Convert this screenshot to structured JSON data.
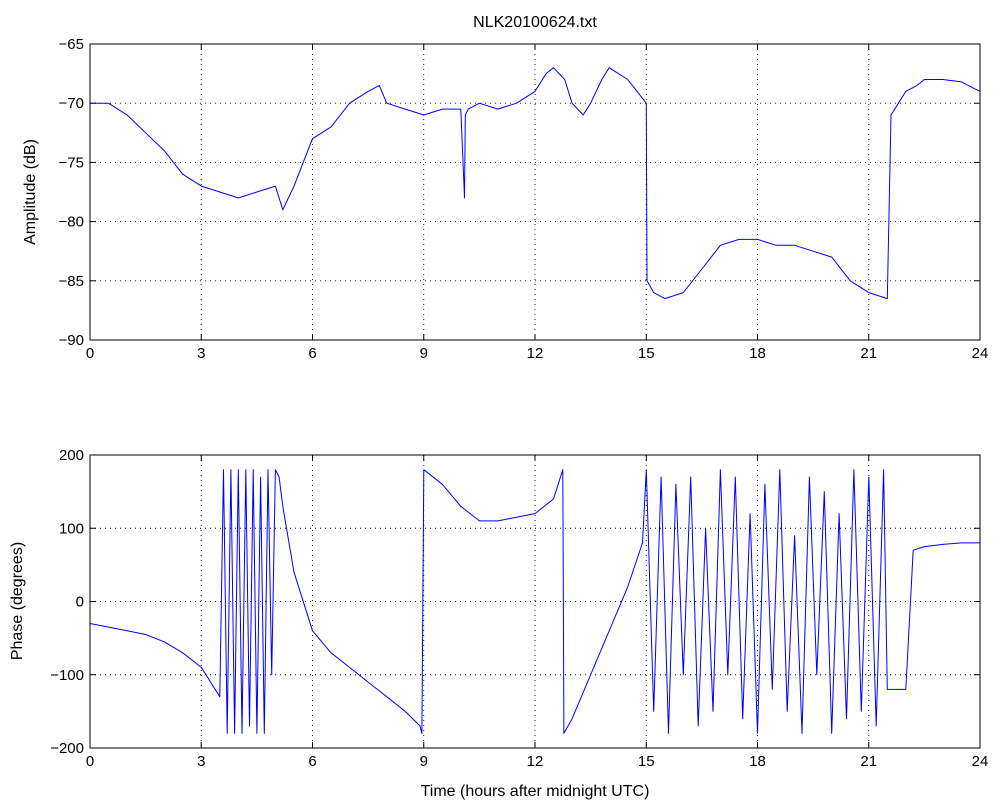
{
  "chart_data": [
    {
      "type": "line",
      "title": "NLK20100624.txt",
      "xlabel": "",
      "ylabel": "Amplitude (dB)",
      "xlim": [
        0,
        24
      ],
      "ylim": [
        -90,
        -65
      ],
      "xticks": [
        0,
        3,
        6,
        9,
        12,
        15,
        18,
        21,
        24
      ],
      "yticks": [
        -90,
        -85,
        -80,
        -75,
        -70,
        -65
      ],
      "grid": true,
      "color": "#0000ff",
      "series": [
        {
          "x": [
            0,
            0.5,
            1,
            1.5,
            2,
            2.5,
            3,
            3.5,
            4,
            4.5,
            5,
            5.2,
            5.5,
            6,
            6.5,
            7,
            7.5,
            7.8,
            8,
            8.5,
            9,
            9.5,
            10,
            10.1,
            10.12,
            10.2,
            10.5,
            11,
            11.5,
            12,
            12.3,
            12.5,
            12.8,
            13,
            13.3,
            13.5,
            13.8,
            14,
            14.5,
            15,
            15.02,
            15.2,
            15.5,
            16,
            16.5,
            17,
            17.5,
            18,
            18.5,
            19,
            19.5,
            20,
            20.5,
            21,
            21.5,
            21.6,
            21.8,
            22,
            22.3,
            22.5,
            23,
            23.5,
            24
          ],
          "values": [
            -70,
            -70,
            -71,
            -72.5,
            -74,
            -76,
            -77,
            -77.5,
            -78,
            -77.5,
            -77,
            -79,
            -77,
            -73,
            -72,
            -70,
            -69,
            -68.5,
            -70,
            -70.5,
            -71,
            -70.5,
            -70.5,
            -78,
            -71,
            -70.5,
            -70,
            -70.5,
            -70,
            -69,
            -67.5,
            -67,
            -68,
            -70,
            -71,
            -70,
            -68,
            -67,
            -68,
            -70,
            -85,
            -86,
            -86.5,
            -86,
            -84,
            -82,
            -81.5,
            -81.5,
            -82,
            -82,
            -82.5,
            -83,
            -85,
            -86,
            -86.5,
            -71,
            -70,
            -69,
            -68.5,
            -68,
            -68,
            -68.2,
            -69
          ]
        }
      ]
    },
    {
      "type": "line",
      "title": "",
      "xlabel": "Time (hours after midnight UTC)",
      "ylabel": "Phase (degrees)",
      "xlim": [
        0,
        24
      ],
      "ylim": [
        -200,
        200
      ],
      "xticks": [
        0,
        3,
        6,
        9,
        12,
        15,
        18,
        21,
        24
      ],
      "yticks": [
        -200,
        -100,
        0,
        100,
        200
      ],
      "grid": true,
      "color": "#0000ff",
      "series": [
        {
          "x": [
            0,
            0.5,
            1,
            1.5,
            2,
            2.5,
            3,
            3.5,
            3.6,
            3.7,
            3.8,
            3.9,
            4.0,
            4.1,
            4.2,
            4.3,
            4.4,
            4.5,
            4.6,
            4.7,
            4.8,
            4.9,
            5.0,
            5.1,
            5.2,
            5.5,
            6,
            6.5,
            7,
            7.5,
            8,
            8.5,
            8.9,
            8.95,
            9.0,
            9.5,
            10,
            10.5,
            11,
            11.5,
            12,
            12.5,
            12.75,
            12.78,
            13,
            13.5,
            14,
            14.5,
            14.9,
            15.0,
            15.2,
            15.4,
            15.6,
            15.8,
            16.0,
            16.2,
            16.4,
            16.6,
            16.8,
            17.0,
            17.2,
            17.4,
            17.6,
            17.8,
            18.0,
            18.2,
            18.4,
            18.6,
            18.8,
            19.0,
            19.2,
            19.4,
            19.6,
            19.8,
            20.0,
            20.2,
            20.4,
            20.6,
            20.8,
            21.0,
            21.2,
            21.4,
            21.5,
            21.8,
            22.0,
            22.2,
            22.5,
            23,
            23.5,
            24
          ],
          "values": [
            -30,
            -35,
            -40,
            -45,
            -55,
            -70,
            -90,
            -130,
            180,
            -180,
            180,
            -180,
            180,
            -180,
            180,
            -170,
            180,
            -180,
            170,
            -180,
            180,
            -100,
            180,
            170,
            130,
            40,
            -40,
            -70,
            -90,
            -110,
            -130,
            -150,
            -170,
            -180,
            180,
            160,
            130,
            110,
            110,
            115,
            120,
            140,
            180,
            -180,
            -160,
            -100,
            -40,
            20,
            80,
            180,
            -150,
            170,
            -180,
            160,
            -100,
            170,
            -170,
            100,
            -150,
            180,
            -100,
            170,
            -160,
            120,
            -180,
            160,
            -120,
            180,
            -150,
            90,
            -180,
            170,
            -100,
            150,
            -180,
            120,
            -160,
            180,
            -150,
            170,
            -170,
            180,
            -120,
            -120,
            -120,
            70,
            75,
            78,
            80,
            80
          ]
        }
      ]
    }
  ]
}
